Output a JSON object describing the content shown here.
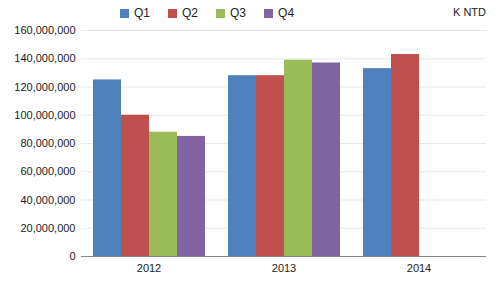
{
  "chart_data": {
    "type": "bar",
    "y_label": "K NTD",
    "categories": [
      "2012",
      "2013",
      "2014"
    ],
    "series": [
      {
        "name": "Q1",
        "color": "#4F81BD",
        "values": [
          125000000,
          128000000,
          133000000
        ]
      },
      {
        "name": "Q2",
        "color": "#C0504D",
        "values": [
          100000000,
          128000000,
          143000000
        ]
      },
      {
        "name": "Q3",
        "color": "#9BBB59",
        "values": [
          88000000,
          139000000,
          null
        ]
      },
      {
        "name": "Q4",
        "color": "#8064A2",
        "values": [
          85000000,
          137000000,
          null
        ]
      }
    ],
    "ylim": [
      0,
      160000000
    ],
    "yticks": [
      0,
      {
        "value": 20000000,
        "label": "20,000,000"
      },
      {
        "value": 40000000,
        "label": "40,000,000"
      },
      {
        "value": 60000000,
        "label": "60,000,000"
      },
      {
        "value": 80000000,
        "label": "80,000,000"
      },
      {
        "value": 100000000,
        "label": "100,000,000"
      },
      {
        "value": 120000000,
        "label": "120,000,000"
      },
      {
        "value": 140000000,
        "label": "140,000,000"
      },
      {
        "value": 160000000,
        "label": "160,000,000"
      }
    ],
    "grid": true,
    "legend": "top"
  }
}
